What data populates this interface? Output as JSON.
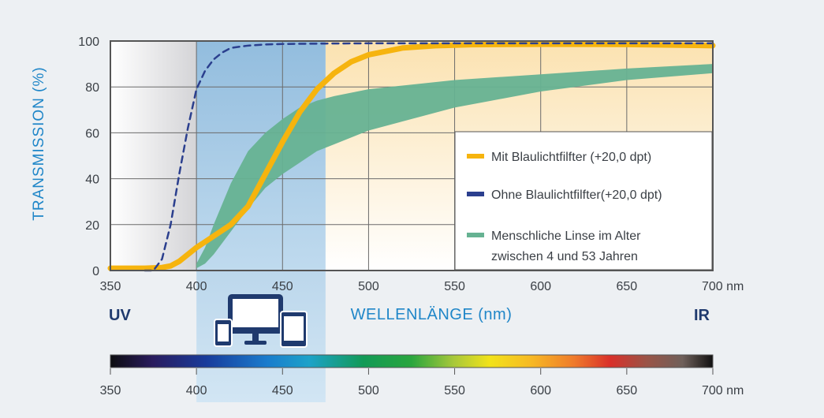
{
  "chart_data": {
    "type": "line",
    "ylabel": "TRANSMISSION (%)",
    "xlabel": "WELLENLÄNGE (nm)",
    "xlim": [
      350,
      700
    ],
    "ylim": [
      0,
      100
    ],
    "x_ticks": [
      350,
      400,
      450,
      500,
      550,
      600,
      650,
      700
    ],
    "x_tick_labels": [
      "350",
      "400",
      "450",
      "500",
      "550",
      "600",
      "650",
      "700 nm"
    ],
    "y_ticks": [
      0,
      20,
      40,
      60,
      80,
      100
    ],
    "y_tick_labels": [
      "0",
      "20",
      "40",
      "60",
      "80",
      "100"
    ],
    "grid": true,
    "legend_position": "center-right",
    "highlight_band": [
      400,
      475
    ],
    "uv_band": [
      350,
      400
    ],
    "region_labels": {
      "left": "UV",
      "right": "IR"
    },
    "series": [
      {
        "name": "Mit Blaulichtfilfter (+20,0 dpt)",
        "style": "solid-line",
        "color": "#f6b40e",
        "x": [
          350,
          370,
          380,
          385,
          390,
          395,
          400,
          410,
          420,
          430,
          440,
          450,
          460,
          470,
          480,
          490,
          500,
          520,
          540,
          560,
          600,
          650,
          700
        ],
        "y": [
          1,
          1,
          1.3,
          2,
          4,
          7,
          10,
          15,
          20,
          28,
          42,
          56,
          69,
          79,
          86,
          91,
          94,
          97,
          98,
          98.4,
          98.6,
          98.5,
          98
        ]
      },
      {
        "name": "Ohne Blaulichtfilfter(+20,0 dpt)",
        "style": "dashed-line",
        "color": "#2b3f8e",
        "x": [
          370,
          375,
          380,
          385,
          390,
          395,
          400,
          405,
          410,
          415,
          420,
          430,
          440,
          450,
          475,
          500,
          550,
          600,
          700
        ],
        "y": [
          0,
          0,
          5,
          20,
          42,
          62,
          79,
          87,
          92,
          95,
          97,
          98,
          98.5,
          98.7,
          98.9,
          99,
          99,
          99,
          99
        ]
      },
      {
        "name": "Menschliche Linse im Alter zwischen 4 und 53 Jahren",
        "style": "band",
        "color": "#66b292",
        "x": [
          400,
          405,
          410,
          420,
          430,
          440,
          450,
          460,
          470,
          480,
          500,
          550,
          600,
          650,
          700
        ],
        "upper": [
          3,
          10,
          20,
          38,
          52,
          60,
          66,
          71,
          74,
          76,
          79,
          83,
          85.5,
          88,
          90
        ],
        "lower": [
          1,
          3,
          7,
          17,
          27,
          36,
          42,
          47,
          52,
          55,
          61,
          71,
          78,
          83,
          86
        ]
      }
    ]
  },
  "legend": {
    "items": [
      {
        "label": "Mit Blaulichtfilfter (+20,0 dpt)",
        "color": "#f6b40e"
      },
      {
        "label": "Ohne Blaulichtfilfter(+20,0 dpt)",
        "color": "#2b3f8e"
      },
      {
        "label": "Menschliche Linse im Alter",
        "label2": "zwischen 4 und 53 Jahren",
        "color": "#66b292"
      }
    ]
  },
  "spectrum_bar": {
    "ticks": [
      350,
      400,
      450,
      500,
      550,
      600,
      650,
      700
    ],
    "tick_labels": [
      "350",
      "400",
      "450",
      "500",
      "550",
      "600",
      "650",
      "700 nm"
    ]
  },
  "icons": {
    "device_icon": "devices-icon"
  },
  "colors": {
    "blue_band": "#8fc0e4",
    "uv_band": "#d8d8d8",
    "warm_region": "#fce9c2",
    "frame": "#555555",
    "accent_text": "#1f86c8",
    "dark_navy": "#1f3a6e"
  }
}
